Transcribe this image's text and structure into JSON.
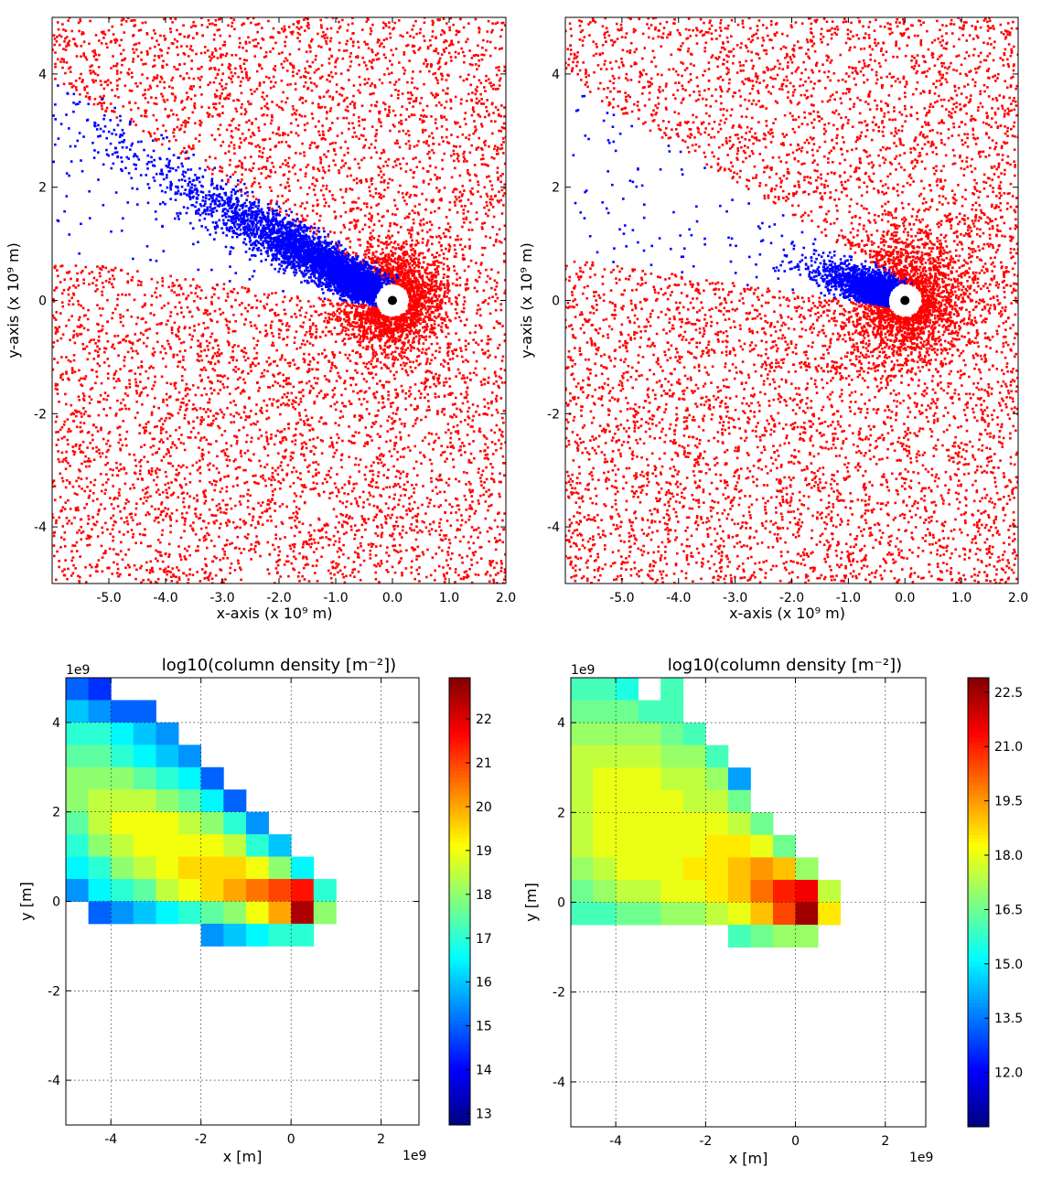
{
  "chart_data": [
    {
      "type": "scatter",
      "xlabel": "x-axis (x 10⁹ m)",
      "ylabel": "y-axis (x 10⁹ m)",
      "xlim": [
        -6,
        2
      ],
      "ylim": [
        -5,
        5
      ],
      "xticks": [
        {
          "value": -5,
          "label": "-5.0"
        },
        {
          "value": -4,
          "label": "-4.0"
        },
        {
          "value": -3,
          "label": "-3.0"
        },
        {
          "value": -2,
          "label": "-2.0"
        },
        {
          "value": -1,
          "label": "-1.0"
        },
        {
          "value": 0,
          "label": "0.0"
        },
        {
          "value": 1,
          "label": "1.0"
        },
        {
          "value": 2,
          "label": "2.0"
        }
      ],
      "yticks": [
        -4,
        -2,
        0,
        2,
        4
      ],
      "point_colors": [
        "#ff0000",
        "#0000ff"
      ]
    },
    {
      "type": "scatter",
      "xlabel": "x-axis (x 10⁹ m)",
      "ylabel": "y-axis (x 10⁹ m)",
      "xlim": [
        -6,
        2
      ],
      "ylim": [
        -5,
        5
      ],
      "xticks": [
        {
          "value": -5,
          "label": "-5.0"
        },
        {
          "value": -4,
          "label": "-4.0"
        },
        {
          "value": -3,
          "label": "-3.0"
        },
        {
          "value": -2,
          "label": "-2.0"
        },
        {
          "value": -1,
          "label": "-1.0"
        },
        {
          "value": 0,
          "label": "0.0"
        },
        {
          "value": 1,
          "label": "1.0"
        },
        {
          "value": 2,
          "label": "2.0"
        }
      ],
      "yticks": [
        -4,
        -2,
        0,
        2,
        4
      ],
      "point_colors": [
        "#ff0000",
        "#0000ff"
      ]
    },
    {
      "type": "heatmap",
      "title": "log10(column density [m⁻²])",
      "xlabel": "x [m]",
      "ylabel": "y [m]",
      "x_offset": "1e9",
      "y_offset": "1e9",
      "xlim": [
        -5,
        2.84
      ],
      "ylim": [
        -5,
        5
      ],
      "xticks": [
        -4,
        -2,
        0,
        2
      ],
      "yticks": [
        -4,
        -2,
        0,
        2,
        4
      ],
      "grid": true,
      "xbins": [
        -5,
        -4.5,
        -4,
        -3.5,
        -3,
        -2.5,
        -2,
        -1.5,
        -1,
        -0.5,
        0,
        0.5,
        1
      ],
      "ybins": [
        5,
        4.5,
        4,
        3.5,
        3,
        2.5,
        2,
        1.5,
        1,
        0.5,
        0,
        -0.5,
        -1
      ],
      "values": [
        [
          15,
          14.5,
          null,
          null,
          null,
          null,
          null,
          null,
          null,
          null,
          null,
          null
        ],
        [
          16,
          15.5,
          15,
          15,
          null,
          null,
          null,
          null,
          null,
          null,
          null,
          null
        ],
        [
          17,
          17,
          16.5,
          16,
          15.5,
          null,
          null,
          null,
          null,
          null,
          null,
          null
        ],
        [
          17.5,
          17.5,
          17,
          16.5,
          16,
          15.5,
          null,
          null,
          null,
          null,
          null,
          null
        ],
        [
          18,
          18,
          18,
          17.5,
          17,
          16.5,
          15,
          null,
          null,
          null,
          null,
          null
        ],
        [
          18,
          18.5,
          18.5,
          18.5,
          18,
          17.5,
          16.5,
          15,
          null,
          null,
          null,
          null
        ],
        [
          17.5,
          18.5,
          19,
          19,
          19,
          18.5,
          18,
          17,
          15.5,
          null,
          null,
          null
        ],
        [
          17,
          18,
          18.5,
          19,
          19,
          19,
          19,
          18.5,
          17,
          16,
          null,
          null
        ],
        [
          16.5,
          17,
          18,
          18.5,
          19,
          19.5,
          19.5,
          19.5,
          19,
          18,
          16.5,
          null
        ],
        [
          15.5,
          16.5,
          17,
          17.5,
          18.5,
          19,
          19.5,
          20,
          20.5,
          21,
          21.5,
          17
        ],
        [
          null,
          15,
          15.5,
          16,
          16.5,
          17,
          17.5,
          18,
          19,
          20,
          22.5,
          18
        ],
        [
          null,
          null,
          null,
          null,
          null,
          null,
          15.5,
          16,
          16.5,
          17,
          17,
          null
        ]
      ],
      "clim": [
        12.74,
        22.94
      ],
      "cticks": [
        13,
        14,
        15,
        16,
        17,
        18,
        19,
        20,
        21,
        22
      ]
    },
    {
      "type": "heatmap",
      "title": "log10(column density [m⁻²])",
      "xlabel": "x [m]",
      "ylabel": "y [m]",
      "x_offset": "1e9",
      "y_offset": "1e9",
      "xlim": [
        -5,
        2.9
      ],
      "ylim": [
        -5,
        5
      ],
      "xticks": [
        -4,
        -2,
        0,
        2
      ],
      "yticks": [
        -4,
        -2,
        0,
        2,
        4
      ],
      "grid": true,
      "xbins": [
        -5,
        -4.5,
        -4,
        -3.5,
        -3,
        -2.5,
        -2,
        -1.5,
        -1,
        -0.5,
        0,
        0.5,
        1
      ],
      "ybins": [
        5,
        4.5,
        4,
        3.5,
        3,
        2.5,
        2,
        1.5,
        1,
        0.5,
        0,
        -0.5,
        -1
      ],
      "values": [
        [
          16,
          16,
          15.5,
          null,
          16,
          null,
          null,
          null,
          null,
          null,
          null,
          null
        ],
        [
          16.5,
          16.5,
          16.5,
          16,
          16,
          null,
          null,
          null,
          null,
          null,
          null,
          null
        ],
        [
          17,
          17,
          17,
          17,
          16.5,
          16,
          null,
          null,
          null,
          null,
          null,
          null
        ],
        [
          17.5,
          17.5,
          17.5,
          17.5,
          17,
          17,
          16,
          null,
          null,
          null,
          null,
          null
        ],
        [
          17.5,
          18,
          18,
          18,
          17.5,
          17.5,
          17,
          14,
          null,
          null,
          null,
          null
        ],
        [
          17.5,
          18,
          18,
          18,
          18,
          17.5,
          17.5,
          16.5,
          null,
          null,
          null,
          null
        ],
        [
          17.5,
          18,
          18,
          18,
          18,
          18,
          18,
          17.5,
          16.5,
          null,
          null,
          null
        ],
        [
          17.5,
          18,
          18,
          18,
          18,
          18,
          18.5,
          18.5,
          18,
          16.5,
          null,
          null
        ],
        [
          17,
          17.5,
          18,
          18,
          18,
          18.5,
          18.5,
          19,
          19.5,
          19,
          17,
          null
        ],
        [
          16.5,
          17,
          17.5,
          17.5,
          18,
          18,
          18.5,
          19,
          20,
          21,
          21.5,
          17.5
        ],
        [
          16,
          16,
          16.5,
          16.5,
          17,
          17,
          17.5,
          18,
          19,
          20.5,
          22.5,
          18.5
        ],
        [
          null,
          null,
          null,
          null,
          null,
          null,
          null,
          16,
          16.5,
          17,
          17,
          null
        ]
      ],
      "clim": [
        10.5,
        22.9
      ],
      "cticks": [
        {
          "value": 12,
          "label": "12.0"
        },
        {
          "value": 13.5,
          "label": "13.5"
        },
        {
          "value": 15,
          "label": "15.0"
        },
        {
          "value": 16.5,
          "label": "16.5"
        },
        {
          "value": 18,
          "label": "18.0"
        },
        {
          "value": 19.5,
          "label": "19.5"
        },
        {
          "value": 21,
          "label": "21.0"
        },
        {
          "value": 22.5,
          "label": "22.5"
        }
      ]
    }
  ]
}
